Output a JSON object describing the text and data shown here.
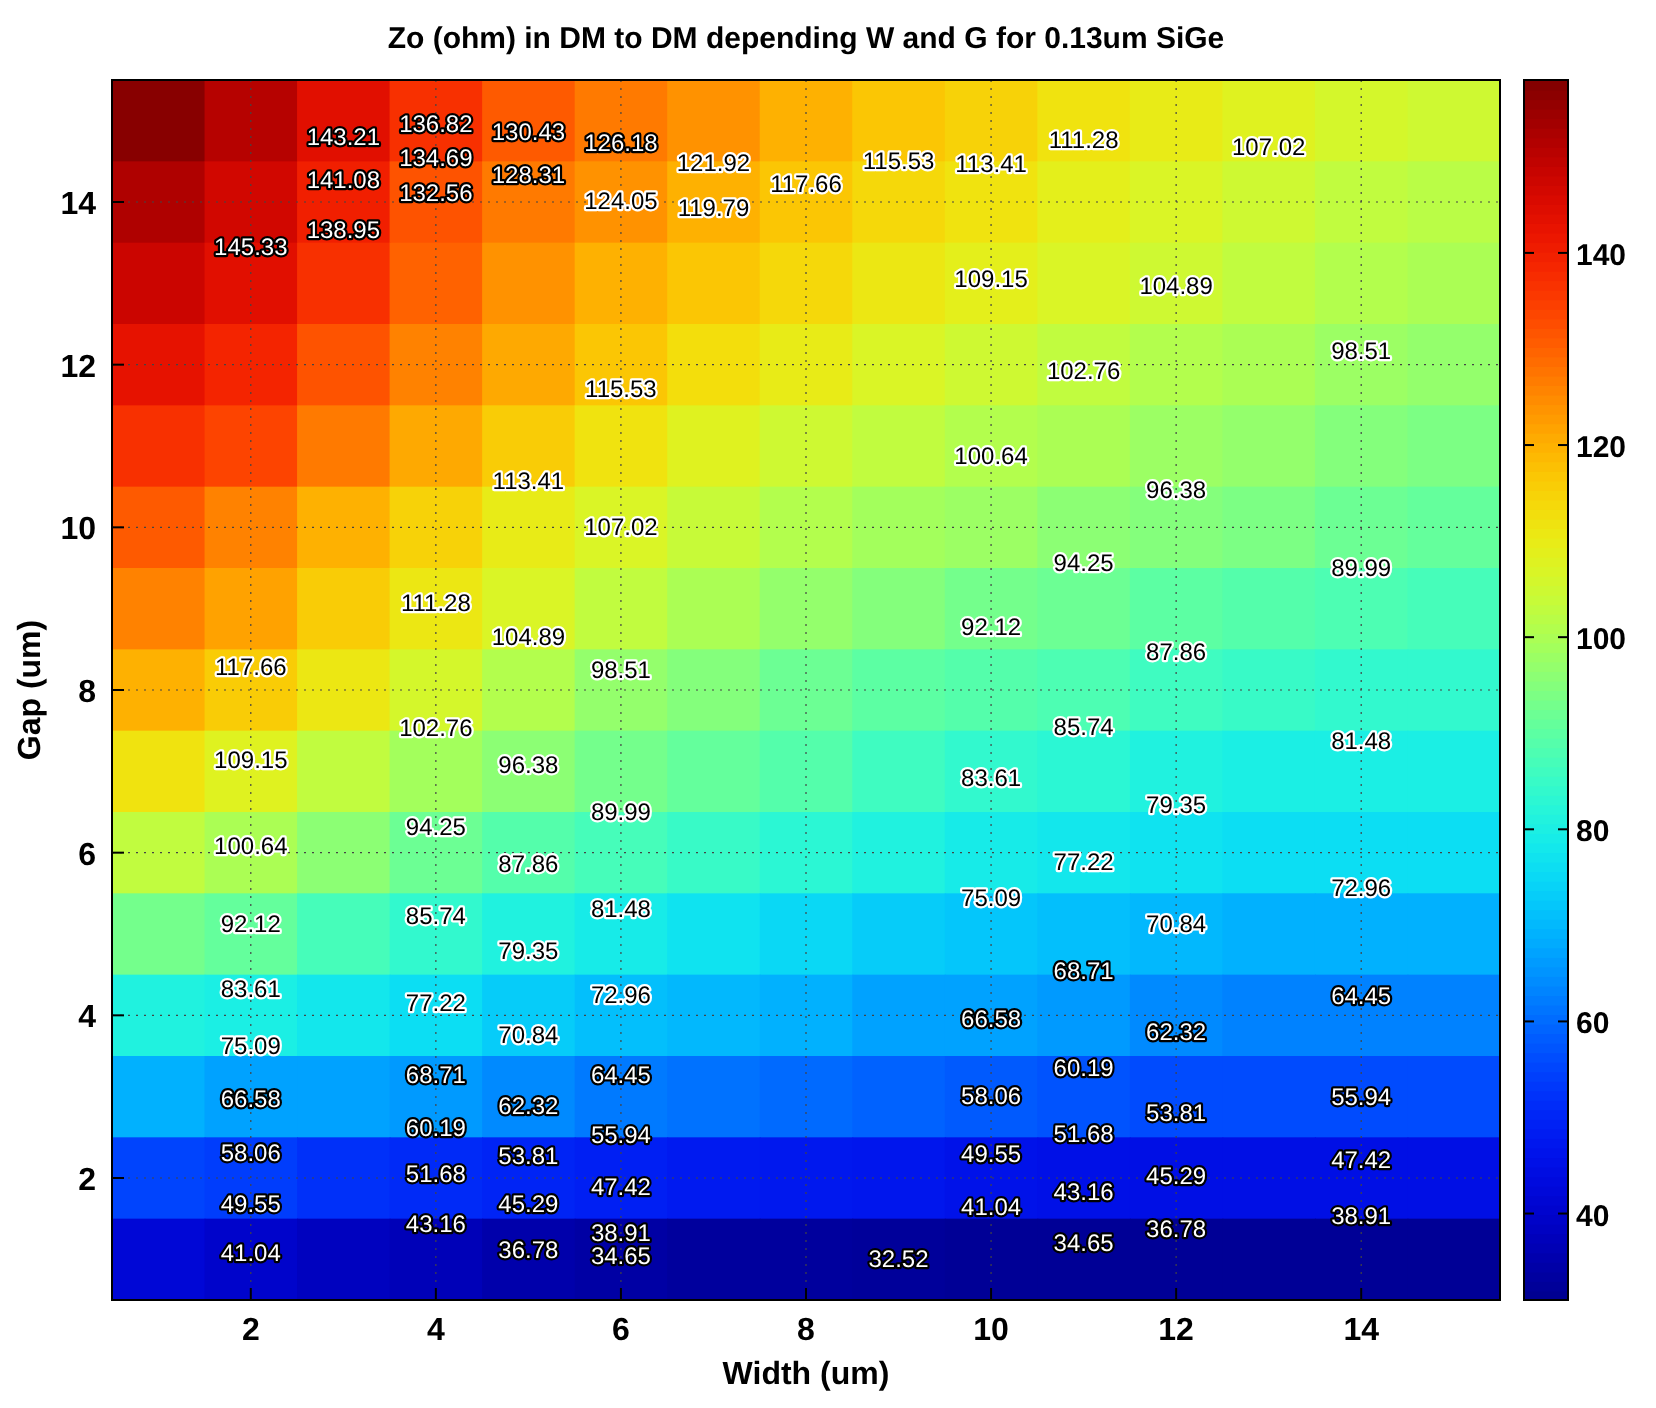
{
  "chart_data": {
    "type": "heatmap",
    "title": "Zo (ohm) in DM to DM depending W and G for 0.13um SiGe",
    "xlabel": "Width (um)",
    "ylabel": "Gap (um)",
    "categories": [
      null,
      "2",
      null,
      "4",
      null,
      "6",
      null,
      "8",
      null,
      "10",
      null,
      "12",
      null,
      "14",
      null
    ],
    "y_categories": [
      null,
      "14",
      null,
      "12",
      null,
      "10",
      null,
      "8",
      null,
      "6",
      null,
      "4",
      null,
      "2",
      null
    ],
    "cells": [
      [
        157,
        151,
        144,
        137,
        131,
        127,
        124,
        120,
        117,
        115,
        112,
        110,
        108,
        106,
        105
      ],
      [
        152,
        147,
        140,
        132,
        127,
        124,
        120,
        117,
        114,
        112,
        109,
        107,
        105,
        103,
        102
      ],
      [
        148,
        144,
        137,
        130,
        124,
        120,
        117,
        114,
        111,
        109,
        107,
        105,
        103,
        101,
        100
      ],
      [
        143,
        139,
        132,
        126,
        121,
        117,
        113,
        110,
        107,
        105,
        103,
        101,
        100,
        98,
        97
      ],
      [
        137,
        134,
        127,
        121,
        116,
        112,
        108,
        105,
        103,
        101,
        100,
        98,
        97,
        95,
        94
      ],
      [
        131,
        126,
        120,
        115,
        110,
        107,
        104,
        101,
        99,
        98,
        96,
        95,
        94,
        92,
        91
      ],
      [
        126,
        122,
        116,
        111,
        107,
        103,
        100,
        97,
        95,
        93,
        92,
        90,
        89,
        88,
        87
      ],
      [
        120,
        116,
        111,
        106,
        101,
        97,
        95,
        92,
        90,
        89,
        88,
        86,
        85,
        84,
        84
      ],
      [
        112,
        108,
        103,
        99,
        96,
        93,
        91,
        89,
        86,
        84,
        83,
        81,
        80,
        80,
        80
      ],
      [
        103,
        100,
        96,
        92,
        89,
        87,
        85,
        83,
        81,
        79,
        78,
        77,
        76,
        76,
        76
      ],
      [
        93,
        91,
        87,
        84,
        81,
        79,
        77,
        75,
        73,
        72,
        71,
        70,
        69,
        69,
        69
      ],
      [
        81,
        80,
        78,
        76,
        73,
        71,
        70,
        69,
        67,
        67,
        66,
        64,
        63,
        63,
        63
      ],
      [
        69,
        67,
        67,
        66,
        64,
        62,
        61,
        60,
        59,
        58,
        57,
        56,
        56,
        56,
        56
      ],
      [
        55,
        54,
        52,
        51,
        50,
        49,
        48,
        47.5,
        47,
        46,
        45.5,
        45,
        45,
        45,
        45
      ],
      [
        42,
        40,
        38,
        37,
        35,
        34,
        33,
        33,
        32.5,
        32,
        32,
        32,
        32,
        32,
        32
      ]
    ],
    "clim": [
      31,
      158
    ],
    "cticks": [
      40,
      60,
      80,
      100,
      120,
      140
    ],
    "grid": true,
    "annotations": [
      "145.33",
      "143.21",
      "141.08",
      "136.82",
      "138.95",
      "132.56",
      "130.43",
      "124.05",
      "119.79",
      "117.66",
      "115.53",
      "121.92",
      "113.41",
      "111.28",
      "107.02",
      "104.89",
      "109.15",
      "134.69",
      "128.31",
      "126.18",
      "102.76",
      "100.64",
      "98.51",
      "96.38",
      "94.25",
      "107.02",
      "104.89",
      "113.41",
      "111.28",
      "117.66",
      "115.53",
      "92.12",
      "109.15",
      "89.99",
      "87.86",
      "102.76",
      "100.64",
      "98.51",
      "96.38",
      "94.25",
      "85.74",
      "83.61",
      "81.48",
      "77.22",
      "79.35",
      "92.12",
      "87.86",
      "89.99",
      "85.74",
      "83.61",
      "79.35",
      "81.48",
      "77.22",
      "75.09",
      "72.96",
      "70.84",
      "68.71",
      "66.58",
      "64.45",
      "75.09",
      "72.96",
      "70.84",
      "66.58",
      "68.71",
      "62.32",
      "60.19",
      "64.45",
      "62.32",
      "60.19",
      "58.06",
      "55.94",
      "58.06",
      "55.94",
      "53.81",
      "51.68",
      "53.81",
      "51.68",
      "49.55",
      "49.55",
      "47.42",
      "47.42",
      "45.29",
      "45.29",
      "43.16",
      "41.04",
      "43.16",
      "41.04",
      "38.91",
      "36.78",
      "36.78",
      "34.65",
      "38.91",
      "34.65",
      "32.52"
    ]
  }
}
